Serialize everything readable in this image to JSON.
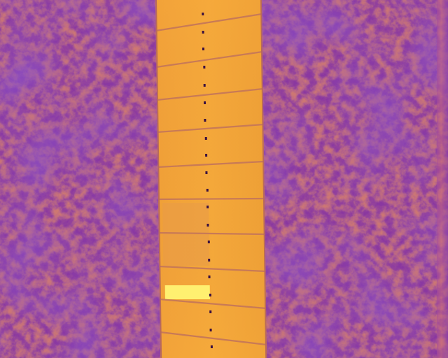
{
  "image": {
    "palette": {
      "cold": "#4a1aa0",
      "mid": "#8a3aa8",
      "warm": "#c8608a",
      "hot": "#f0a030",
      "hottest": "#ffe060",
      "frame_line": "#c87a56",
      "center_seam_dot": "#3a1040"
    },
    "panel": {
      "rows": 10,
      "columns": 2,
      "hotspot": {
        "row": 8,
        "column": 1,
        "color": "#fff070"
      }
    }
  }
}
